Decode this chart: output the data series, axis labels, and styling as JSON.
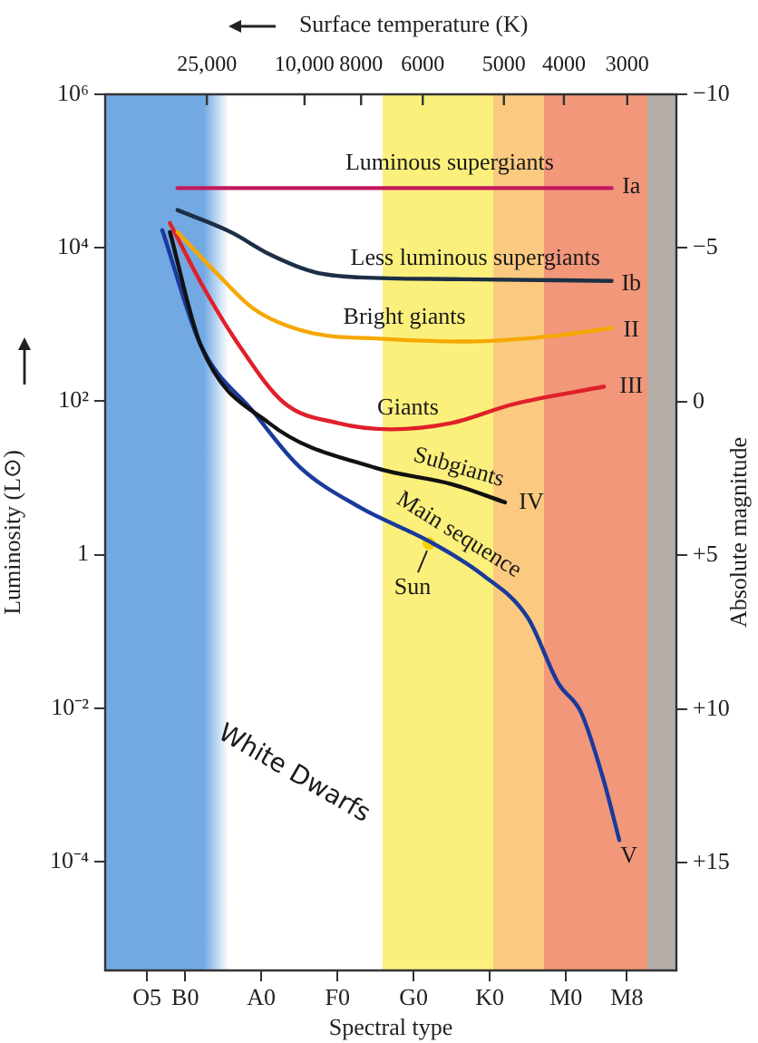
{
  "chart_data": {
    "type": "line",
    "xlabel": "Spectral type",
    "ylabel": "Luminosity (L⊙)",
    "y2label": "Absolute magnitude",
    "x2label": "Surface temperature (K)",
    "log": "y",
    "grid": false,
    "legend": false,
    "marker": "none",
    "line_style": "solid",
    "categories": [
      null,
      null,
      null,
      null,
      null,
      "O5",
      null,
      null,
      null,
      null,
      "B0",
      null,
      null,
      null,
      null,
      null,
      null,
      null,
      null,
      null,
      "A0",
      null,
      null,
      null,
      null,
      null,
      null,
      null,
      null,
      null,
      "F0",
      null,
      null,
      null,
      null,
      null,
      null,
      null,
      null,
      null,
      "G0",
      null,
      null,
      null,
      null,
      null,
      null,
      null,
      null,
      null,
      "K0",
      null,
      null,
      null,
      null,
      null,
      null,
      null,
      null,
      null,
      "M0",
      null,
      null,
      null,
      null,
      null,
      null,
      null,
      "M8",
      null,
      null,
      null,
      null,
      null,
      null
    ],
    "ylim": [
      3.8e-06,
      1000000
    ],
    "yticks": [
      {
        "value": 1000000,
        "label": "10⁶"
      },
      {
        "value": 10000,
        "label": "10⁴"
      },
      {
        "value": 100,
        "label": "10²"
      },
      1,
      {
        "value": 0.01,
        "label": "10⁻²"
      },
      {
        "value": 0.0001,
        "label": "10⁻⁴"
      }
    ],
    "y2lim": [
      18.5,
      -10
    ],
    "y2ticks": [
      {
        "value": -10,
        "label": "−10"
      },
      {
        "value": -5,
        "label": "−5"
      },
      0,
      {
        "value": 5,
        "label": "+5"
      },
      {
        "value": 10,
        "label": "+10"
      },
      {
        "value": 15,
        "label": "+15"
      }
    ],
    "series": [
      {
        "color": "#c4185c",
        "values": [
          null,
          null,
          null,
          null,
          null,
          null,
          null,
          null,
          null,
          60000,
          null,
          null,
          null,
          null,
          null,
          null,
          null,
          null,
          null,
          null,
          null,
          null,
          null,
          null,
          null,
          null,
          null,
          null,
          null,
          null,
          null,
          null,
          null,
          null,
          null,
          null,
          null,
          null,
          null,
          null,
          null,
          null,
          null,
          null,
          null,
          null,
          null,
          null,
          null,
          null,
          null,
          null,
          null,
          null,
          null,
          null,
          null,
          null,
          null,
          null,
          null,
          null,
          null,
          null,
          null,
          null,
          60000,
          null,
          null,
          null,
          null,
          null,
          null,
          null,
          null
        ]
      },
      {
        "color": "#1c2f45",
        "values": [
          null,
          null,
          null,
          null,
          null,
          null,
          null,
          null,
          null,
          31000,
          null,
          null,
          null,
          null,
          null,
          null,
          16000,
          null,
          null,
          null,
          null,
          8300,
          null,
          null,
          null,
          null,
          null,
          4800,
          null,
          null,
          null,
          null,
          null,
          4100,
          null,
          null,
          null,
          null,
          null,
          null,
          null,
          null,
          null,
          null,
          null,
          3900,
          null,
          null,
          null,
          null,
          null,
          null,
          null,
          null,
          null,
          null,
          null,
          null,
          null,
          null,
          null,
          null,
          null,
          null,
          null,
          null,
          3700,
          null,
          null,
          null,
          null,
          null,
          null,
          null,
          null
        ]
      },
      {
        "color": "#f5a800",
        "values": [
          null,
          null,
          null,
          null,
          null,
          null,
          null,
          null,
          null,
          16000,
          null,
          null,
          null,
          null,
          4800,
          null,
          null,
          null,
          null,
          1600,
          null,
          null,
          null,
          null,
          null,
          null,
          800,
          null,
          null,
          null,
          null,
          null,
          null,
          null,
          null,
          null,
          650,
          null,
          null,
          null,
          null,
          null,
          null,
          null,
          null,
          null,
          null,
          600,
          null,
          null,
          null,
          null,
          null,
          null,
          null,
          null,
          null,
          null,
          null,
          720,
          null,
          null,
          null,
          null,
          null,
          null,
          900,
          null,
          null,
          null,
          null,
          null,
          null,
          null,
          null
        ]
      },
      {
        "color": "#e0202a",
        "values": [
          null,
          null,
          null,
          null,
          null,
          null,
          null,
          null,
          21000,
          null,
          null,
          null,
          3600,
          null,
          null,
          null,
          null,
          550,
          null,
          null,
          null,
          null,
          null,
          95,
          null,
          null,
          null,
          null,
          null,
          null,
          52,
          null,
          null,
          null,
          null,
          null,
          null,
          43,
          null,
          null,
          null,
          null,
          null,
          null,
          null,
          52,
          null,
          null,
          null,
          null,
          null,
          null,
          null,
          91,
          null,
          null,
          null,
          null,
          null,
          null,
          null,
          null,
          null,
          null,
          null,
          155,
          null,
          null,
          null,
          null,
          null,
          null,
          null,
          null,
          null
        ]
      },
      {
        "color": "#111111",
        "values": [
          null,
          null,
          null,
          null,
          null,
          null,
          null,
          null,
          16000,
          null,
          null,
          null,
          550,
          null,
          null,
          null,
          null,
          null,
          null,
          null,
          null,
          52,
          null,
          null,
          null,
          null,
          null,
          null,
          null,
          null,
          null,
          null,
          null,
          null,
          null,
          13.5,
          null,
          null,
          null,
          null,
          null,
          null,
          null,
          null,
          null,
          8.3,
          null,
          null,
          null,
          null,
          null,
          null,
          4.8,
          null,
          null,
          null,
          null,
          null,
          null,
          null,
          null,
          null,
          null,
          null,
          null,
          null,
          null,
          null,
          null,
          null,
          null,
          null,
          null,
          null,
          null
        ]
      },
      {
        "color": "#1a3a9c",
        "values": [
          null,
          null,
          null,
          null,
          null,
          null,
          null,
          17000,
          null,
          null,
          null,
          null,
          550,
          null,
          null,
          null,
          null,
          null,
          null,
          72,
          null,
          null,
          null,
          null,
          null,
          14,
          null,
          null,
          null,
          null,
          null,
          null,
          null,
          4.1,
          null,
          null,
          null,
          null,
          null,
          null,
          null,
          null,
          1.5,
          null,
          null,
          null,
          null,
          null,
          null,
          0.55,
          null,
          null,
          null,
          null,
          null,
          0.15,
          null,
          null,
          null,
          0.021,
          null,
          null,
          0.0087,
          null,
          null,
          0.0011,
          null,
          0.00019,
          null,
          null,
          null,
          null,
          null,
          null,
          null
        ]
      },
      {
        "type": "scatter",
        "name": "Sun",
        "color": "#f5d000",
        "marker": "circle",
        "values": [
          null,
          null,
          null,
          null,
          null,
          null,
          null,
          null,
          null,
          null,
          null,
          null,
          null,
          null,
          null,
          null,
          null,
          null,
          null,
          null,
          null,
          null,
          null,
          null,
          null,
          null,
          null,
          null,
          null,
          null,
          null,
          null,
          null,
          null,
          null,
          null,
          null,
          null,
          null,
          null,
          null,
          null,
          1.4,
          null,
          null,
          null,
          null,
          null,
          null,
          null,
          null,
          null,
          null,
          null,
          null,
          null,
          null,
          null,
          null,
          null,
          null,
          null,
          null,
          null,
          null,
          null,
          null,
          null,
          null,
          null,
          null,
          null,
          null,
          null,
          null
        ]
      }
    ],
    "annotations": [
      "Luminous supergiants",
      "Ia",
      "Less luminous supergiants",
      "Ib",
      "Bright giants",
      "II",
      "Giants",
      "III",
      "Subgiants",
      "IV",
      "Main sequence",
      "V",
      "White Dwarfs",
      "25,000",
      "10,000",
      "8000",
      "6000",
      "5000",
      "4000",
      "3000"
    ]
  }
}
